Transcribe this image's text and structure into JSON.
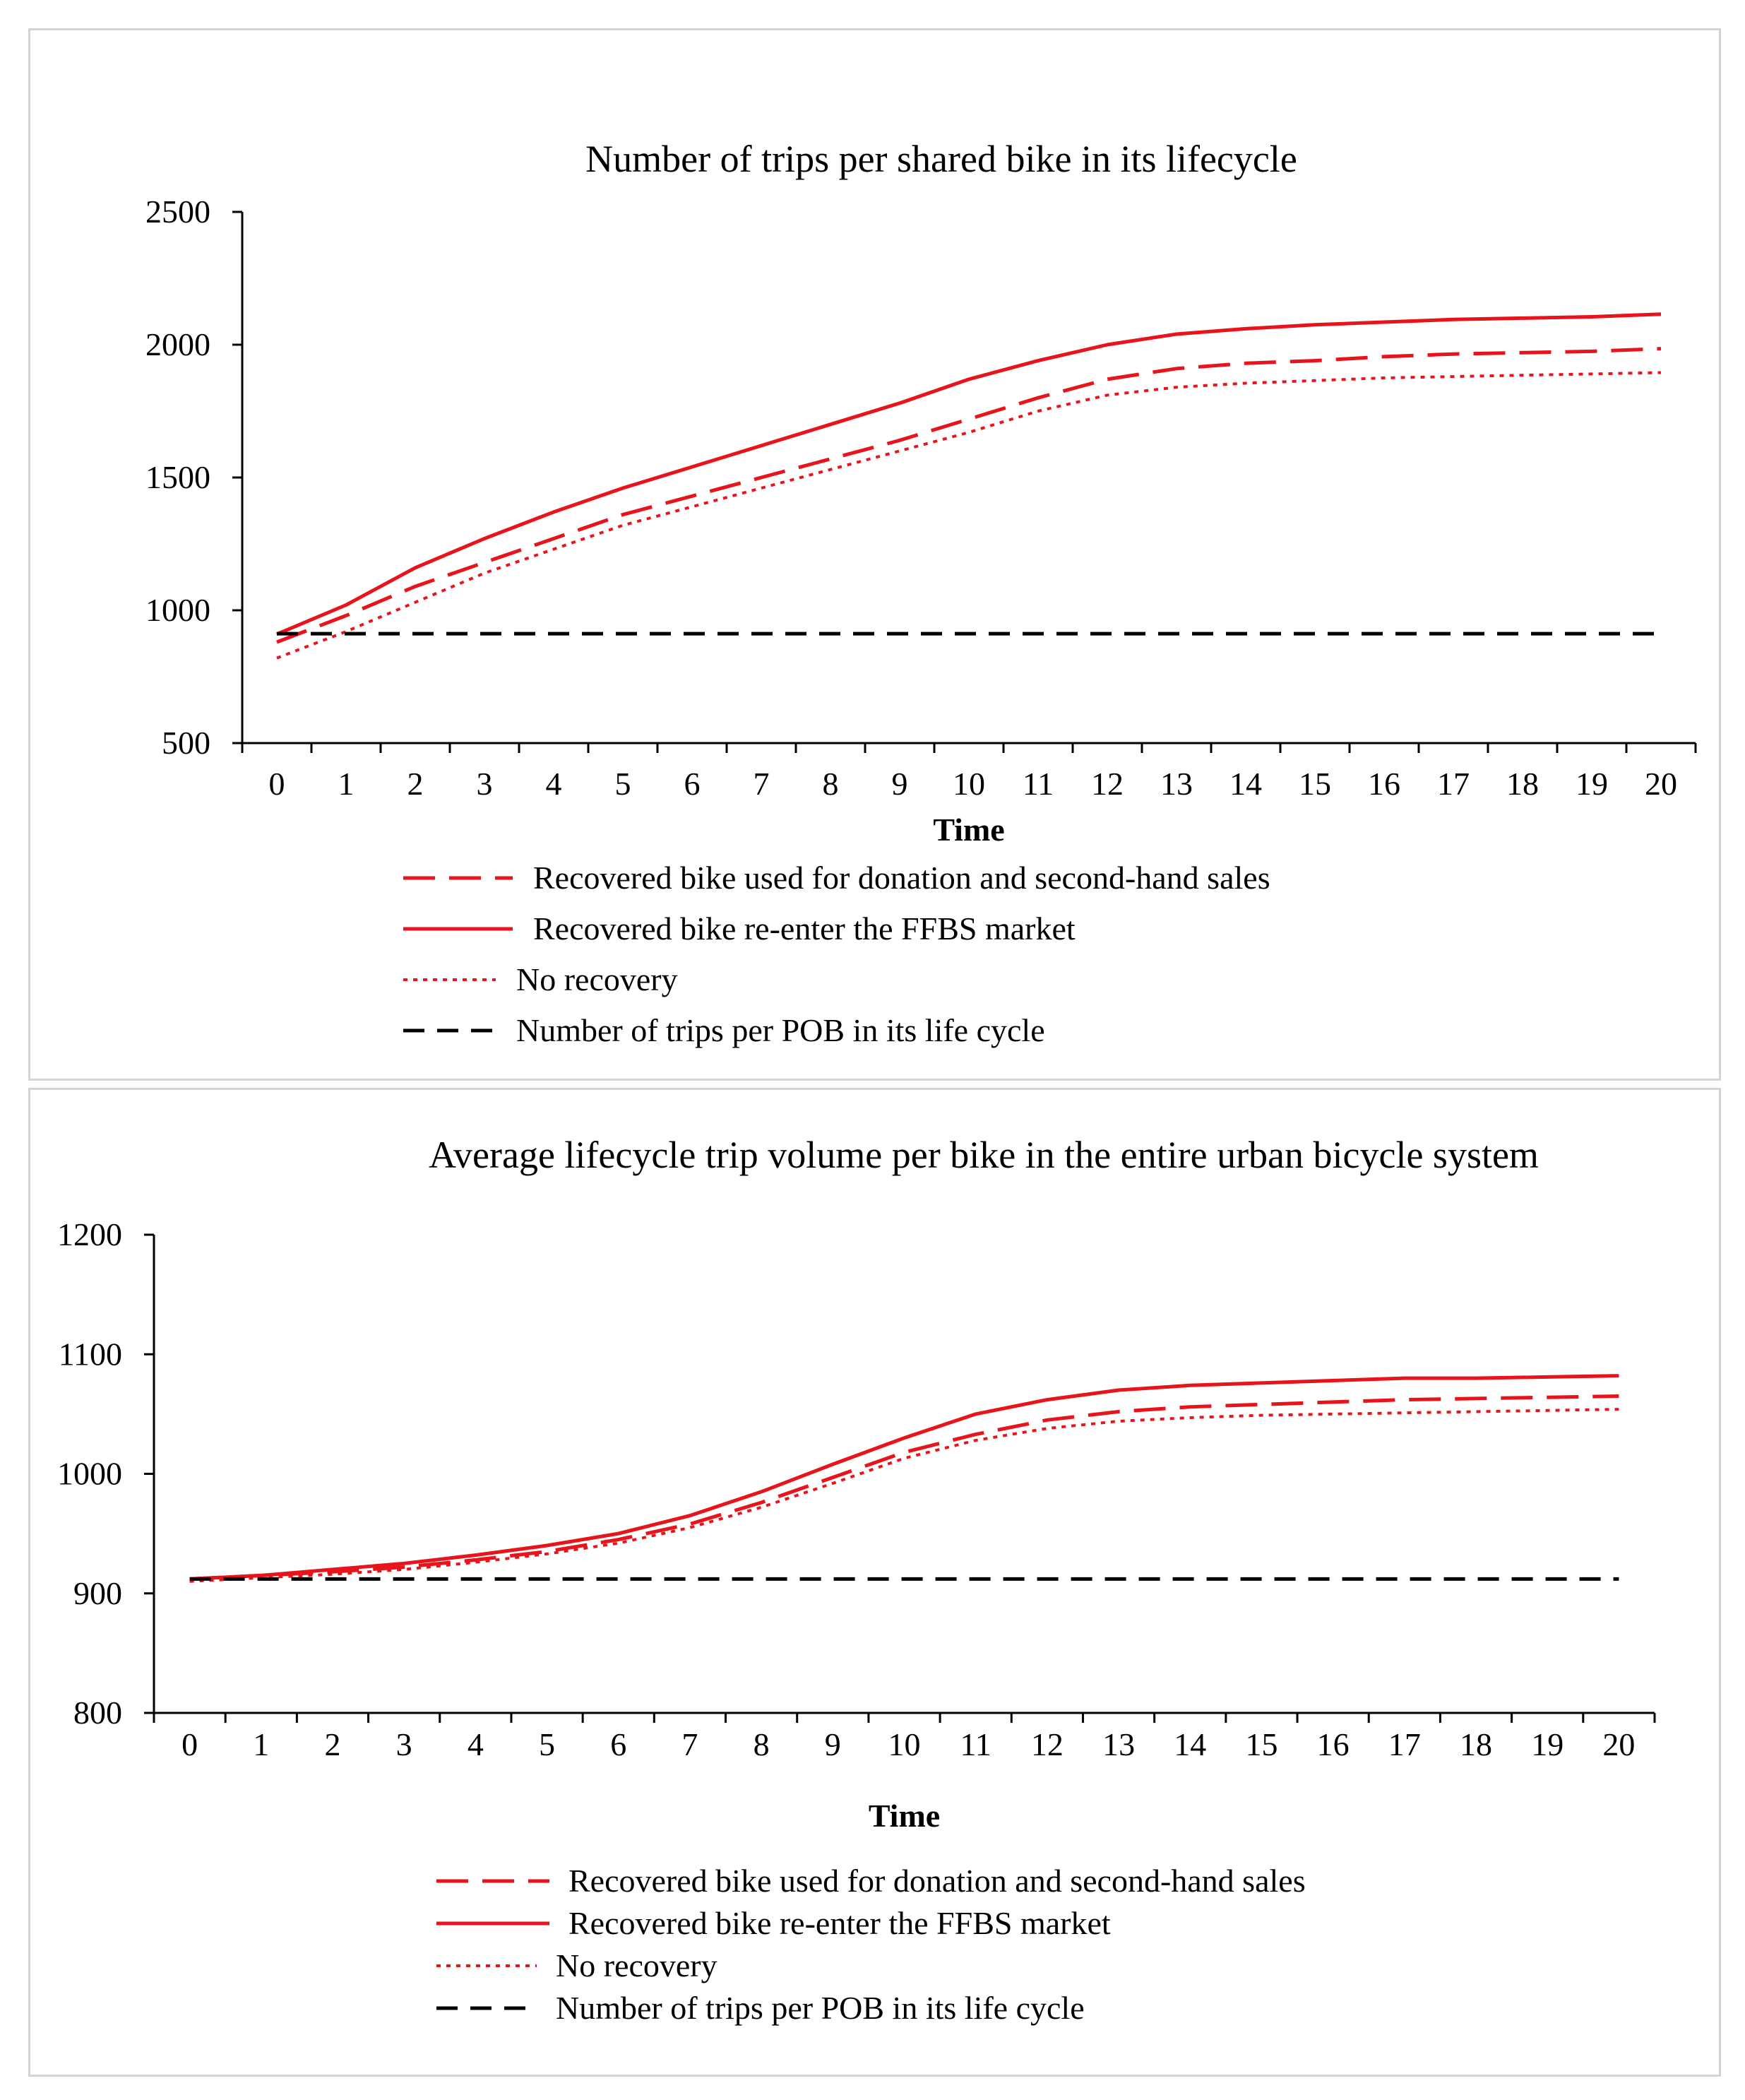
{
  "colors": {
    "red": "#e8141c",
    "black": "#000000"
  },
  "charts": [
    {
      "type": "line",
      "title": "Number of trips per shared bike in its lifecycle",
      "xlabel": "Time",
      "ylabel": "",
      "x": [
        0,
        1,
        2,
        3,
        4,
        5,
        6,
        7,
        8,
        9,
        10,
        11,
        12,
        13,
        14,
        15,
        16,
        17,
        18,
        19,
        20
      ],
      "ylim": [
        500,
        2500
      ],
      "yticks": [
        500,
        1000,
        1500,
        2000,
        2500
      ],
      "series": [
        {
          "name": "Recovered bike used for donation and second-hand sales",
          "style": "dashed",
          "color": "red",
          "values": [
            880,
            980,
            1090,
            1180,
            1270,
            1360,
            1430,
            1500,
            1570,
            1640,
            1720,
            1800,
            1870,
            1910,
            1930,
            1940,
            1955,
            1965,
            1970,
            1975,
            1985
          ]
        },
        {
          "name": "Recovered bike re-enter the FFBS market",
          "style": "solid",
          "color": "red",
          "values": [
            910,
            1020,
            1160,
            1270,
            1370,
            1460,
            1540,
            1620,
            1700,
            1780,
            1870,
            1940,
            2000,
            2040,
            2060,
            2075,
            2085,
            2095,
            2100,
            2105,
            2115
          ]
        },
        {
          "name": "No recovery",
          "style": "dotted",
          "color": "red",
          "values": [
            820,
            920,
            1030,
            1140,
            1230,
            1320,
            1390,
            1460,
            1530,
            1600,
            1670,
            1750,
            1810,
            1840,
            1855,
            1865,
            1875,
            1880,
            1885,
            1890,
            1895
          ]
        },
        {
          "name": "Number of trips per POB in its life cycle",
          "style": "dashed-black",
          "color": "black",
          "values": [
            912,
            912,
            912,
            912,
            912,
            912,
            912,
            912,
            912,
            912,
            912,
            912,
            912,
            912,
            912,
            912,
            912,
            912,
            912,
            912,
            912
          ]
        }
      ]
    },
    {
      "type": "line",
      "title": "Average lifecycle trip volume per bike in the entire urban bicycle system",
      "xlabel": "Time",
      "ylabel": "",
      "x": [
        0,
        1,
        2,
        3,
        4,
        5,
        6,
        7,
        8,
        9,
        10,
        11,
        12,
        13,
        14,
        15,
        16,
        17,
        18,
        19,
        20
      ],
      "ylim": [
        800,
        1200
      ],
      "yticks": [
        800,
        900,
        1000,
        1100,
        1200
      ],
      "series": [
        {
          "name": "Recovered bike used for donation and second-hand sales",
          "style": "dashed",
          "color": "red",
          "values": [
            912,
            915,
            918,
            922,
            928,
            935,
            945,
            958,
            976,
            997,
            1018,
            1033,
            1045,
            1052,
            1056,
            1058,
            1060,
            1062,
            1063,
            1064,
            1065
          ]
        },
        {
          "name": "Recovered bike re-enter the FFBS market",
          "style": "solid",
          "color": "red",
          "values": [
            912,
            915,
            920,
            925,
            932,
            940,
            950,
            965,
            985,
            1008,
            1030,
            1050,
            1062,
            1070,
            1074,
            1076,
            1078,
            1080,
            1080,
            1081,
            1082
          ]
        },
        {
          "name": "No recovery",
          "style": "dotted",
          "color": "red",
          "values": [
            910,
            913,
            916,
            920,
            926,
            933,
            942,
            955,
            972,
            992,
            1013,
            1028,
            1038,
            1044,
            1047,
            1049,
            1050,
            1051,
            1052,
            1053,
            1054
          ]
        },
        {
          "name": "Number of trips per POB in its life cycle",
          "style": "dashed-black",
          "color": "black",
          "values": [
            912,
            912,
            912,
            912,
            912,
            912,
            912,
            912,
            912,
            912,
            912,
            912,
            912,
            912,
            912,
            912,
            912,
            912,
            912,
            912,
            912
          ]
        }
      ]
    }
  ]
}
